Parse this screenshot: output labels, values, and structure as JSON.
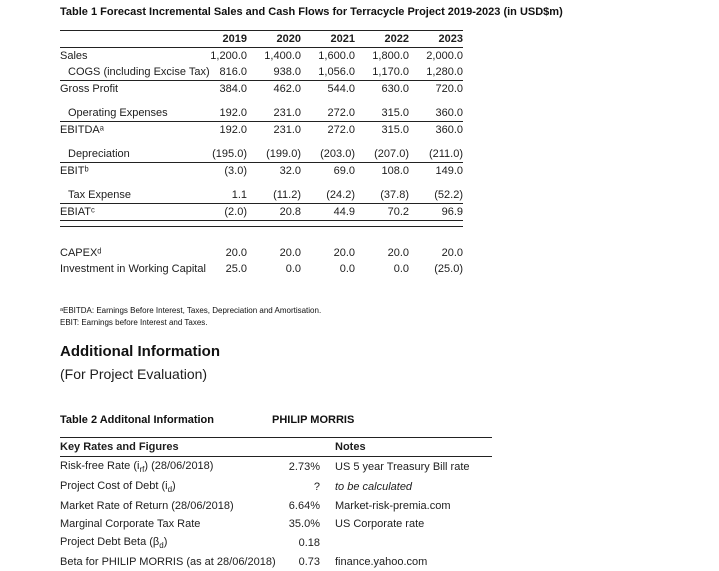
{
  "table1": {
    "title": "Table 1 Forecast Incremental Sales and Cash Flows for Terracycle Project 2019-2023 (in USD$m)",
    "years": [
      "2019",
      "2020",
      "2021",
      "2022",
      "2023"
    ],
    "rows": [
      {
        "label": "Sales",
        "values": [
          "1,200.0",
          "1,400.0",
          "1,600.0",
          "1,800.0",
          "2,000.0"
        ]
      },
      {
        "label": "COGS (including Excise Tax)",
        "values": [
          "816.0",
          "938.0",
          "1,056.0",
          "1,170.0",
          "1,280.0"
        ],
        "indent": true,
        "underline": true
      },
      {
        "label": "Gross Profit",
        "values": [
          "384.0",
          "462.0",
          "544.0",
          "630.0",
          "720.0"
        ]
      },
      {
        "label": "Operating Expenses",
        "values": [
          "192.0",
          "231.0",
          "272.0",
          "315.0",
          "360.0"
        ],
        "indent": true,
        "underline": true,
        "space": 1
      },
      {
        "label": "EBITDAᵃ",
        "values": [
          "192.0",
          "231.0",
          "272.0",
          "315.0",
          "360.0"
        ]
      },
      {
        "label": "Depreciation",
        "values": [
          "(195.0)",
          "(199.0)",
          "(203.0)",
          "(207.0)",
          "(211.0)"
        ],
        "indent": true,
        "underline": true,
        "space": 1
      },
      {
        "label": "EBITᵇ",
        "values": [
          "(3.0)",
          "32.0",
          "69.0",
          "108.0",
          "149.0"
        ]
      },
      {
        "label": "Tax Expense",
        "values": [
          "1.1",
          "(11.2)",
          "(24.2)",
          "(37.8)",
          "(52.2)"
        ],
        "indent": true,
        "underline": true,
        "space": 1
      },
      {
        "label": "EBIATᶜ",
        "values": [
          "(2.0)",
          "20.8",
          "44.9",
          "70.2",
          "96.9"
        ],
        "underline": true,
        "rule_after": true
      },
      {
        "label": "CAPEXᵈ",
        "values": [
          "20.0",
          "20.0",
          "20.0",
          "20.0",
          "20.0"
        ],
        "space": 2
      },
      {
        "label": "Investment in Working Capital",
        "values": [
          "25.0",
          "0.0",
          "0.0",
          "0.0",
          "(25.0)"
        ]
      }
    ]
  },
  "footnotes": [
    "ᵃEBITDA: Earnings Before Interest, Taxes, Depreciation and Amortisation.",
    "EBIT: Earnings before Interest and Taxes."
  ],
  "additional": {
    "heading": "Additional Information",
    "subheading": "(For Project Evaluation)"
  },
  "table2": {
    "title": "Table 2 Additonal Information",
    "company": "PHILIP MORRIS",
    "col1_header": "Key Rates and Figures",
    "col2_header": "Notes",
    "rows": [
      {
        "label_parts": [
          {
            "t": "Risk-free Rate (i"
          },
          {
            "s": "rf"
          },
          {
            "t": ") (28/06/2018)"
          }
        ],
        "value": "2.73%",
        "note": "US 5 year Treasury Bill rate"
      },
      {
        "label_parts": [
          {
            "t": "Project Cost of Debt (i"
          },
          {
            "s": "d"
          },
          {
            "t": ")"
          }
        ],
        "value": "?",
        "note": "to be calculated",
        "note_italic": true
      },
      {
        "label_parts": [
          {
            "t": "Market Rate of Return (28/06/2018)"
          }
        ],
        "value": "6.64%",
        "note": "Market-risk-premia.com"
      },
      {
        "label_parts": [
          {
            "t": "Marginal Corporate Tax Rate"
          }
        ],
        "value": "35.0%",
        "note": "US Corporate rate"
      },
      {
        "label_parts": [
          {
            "t": "Project Debt Beta (β"
          },
          {
            "s": "d"
          },
          {
            "t": ")"
          }
        ],
        "value": "0.18",
        "note": ""
      },
      {
        "label_parts": [
          {
            "t": "Beta for PHILIP MORRIS (as at 28/06/2018)"
          }
        ],
        "value": "0.73",
        "note": "finance.yahoo.com"
      }
    ]
  }
}
